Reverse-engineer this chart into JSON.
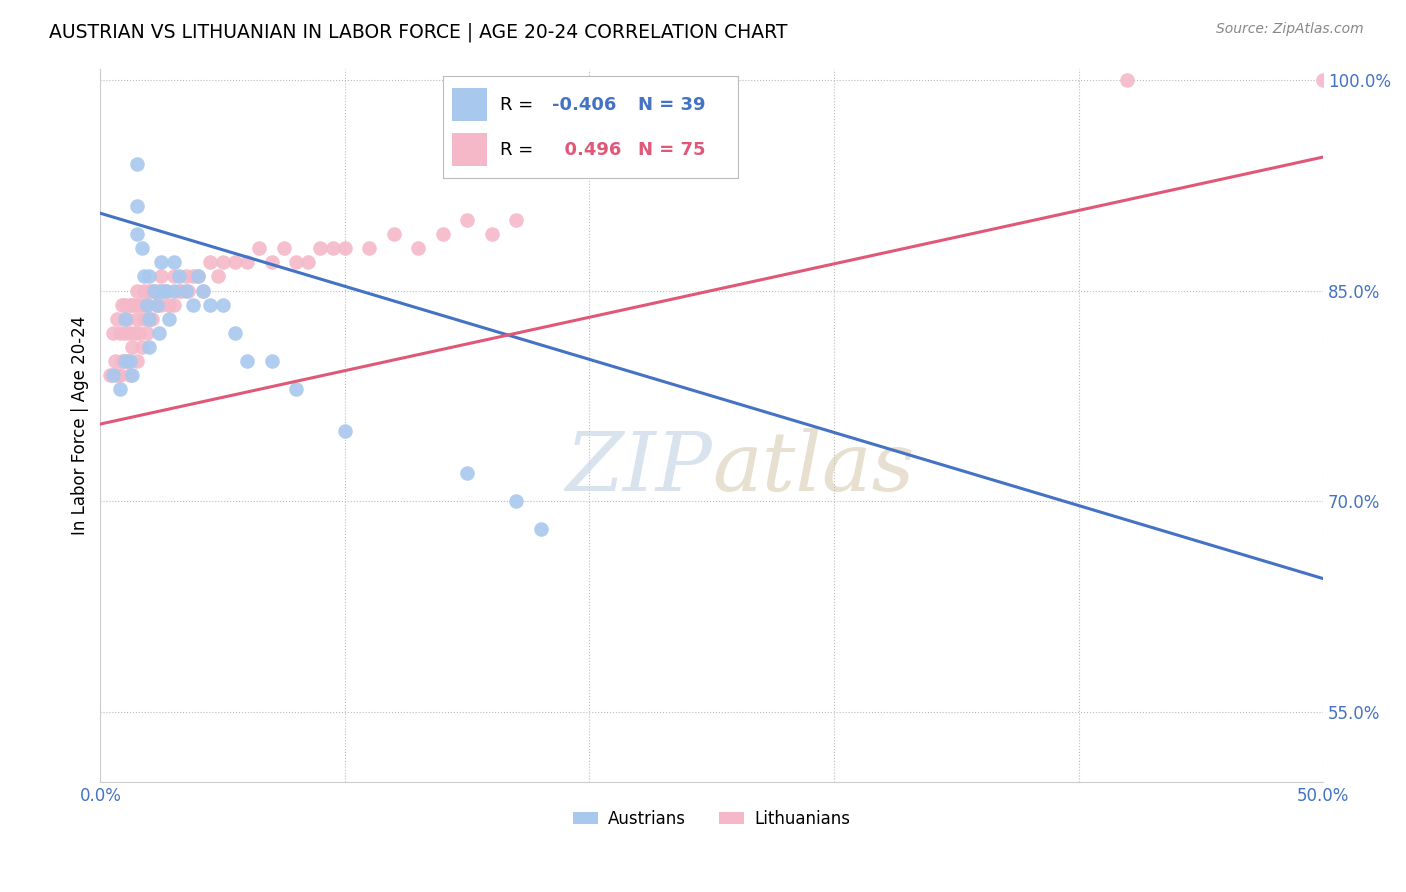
{
  "title": "AUSTRIAN VS LITHUANIAN IN LABOR FORCE | AGE 20-24 CORRELATION CHART",
  "source": "Source: ZipAtlas.com",
  "ylabel": "In Labor Force | Age 20-24",
  "xmin": 0.0,
  "xmax": 0.5,
  "ymin": 0.5,
  "ymax": 1.008,
  "xticks": [
    0.0,
    0.1,
    0.2,
    0.3,
    0.4,
    0.5
  ],
  "xticklabels": [
    "0.0%",
    "",
    "",
    "",
    "",
    "50.0%"
  ],
  "yticks": [
    0.55,
    0.7,
    0.85,
    1.0
  ],
  "yticklabels": [
    "55.0%",
    "70.0%",
    "85.0%",
    "100.0%"
  ],
  "legend_blue_r": "-0.406",
  "legend_blue_n": "39",
  "legend_pink_r": "0.496",
  "legend_pink_n": "75",
  "blue_color": "#A8C8EE",
  "pink_color": "#F5B8C8",
  "blue_line_color": "#4472C4",
  "pink_line_color": "#E05878",
  "watermark_color": "#C8D8E8",
  "blue_line_y0": 0.905,
  "blue_line_y1": 0.645,
  "pink_line_y0": 0.755,
  "pink_line_y1": 0.945,
  "austrians_x": [
    0.005,
    0.008,
    0.01,
    0.01,
    0.012,
    0.013,
    0.015,
    0.015,
    0.015,
    0.017,
    0.018,
    0.019,
    0.02,
    0.02,
    0.02,
    0.022,
    0.023,
    0.024,
    0.025,
    0.025,
    0.027,
    0.028,
    0.03,
    0.03,
    0.032,
    0.035,
    0.038,
    0.04,
    0.042,
    0.045,
    0.05,
    0.055,
    0.06,
    0.07,
    0.08,
    0.1,
    0.15,
    0.17,
    0.18
  ],
  "austrians_y": [
    0.79,
    0.78,
    0.83,
    0.8,
    0.8,
    0.79,
    0.94,
    0.91,
    0.89,
    0.88,
    0.86,
    0.84,
    0.86,
    0.83,
    0.81,
    0.85,
    0.84,
    0.82,
    0.87,
    0.85,
    0.85,
    0.83,
    0.87,
    0.85,
    0.86,
    0.85,
    0.84,
    0.86,
    0.85,
    0.84,
    0.84,
    0.82,
    0.8,
    0.8,
    0.78,
    0.75,
    0.72,
    0.7,
    0.68
  ],
  "lithuanians_x": [
    0.004,
    0.005,
    0.006,
    0.007,
    0.007,
    0.008,
    0.008,
    0.009,
    0.009,
    0.01,
    0.01,
    0.01,
    0.011,
    0.011,
    0.012,
    0.012,
    0.012,
    0.013,
    0.013,
    0.014,
    0.014,
    0.015,
    0.015,
    0.015,
    0.016,
    0.016,
    0.017,
    0.017,
    0.018,
    0.018,
    0.019,
    0.019,
    0.02,
    0.02,
    0.021,
    0.021,
    0.022,
    0.023,
    0.024,
    0.025,
    0.025,
    0.026,
    0.027,
    0.028,
    0.03,
    0.03,
    0.032,
    0.033,
    0.035,
    0.036,
    0.038,
    0.04,
    0.042,
    0.045,
    0.048,
    0.05,
    0.055,
    0.06,
    0.065,
    0.07,
    0.075,
    0.08,
    0.085,
    0.09,
    0.095,
    0.1,
    0.11,
    0.12,
    0.13,
    0.14,
    0.15,
    0.16,
    0.17,
    0.42,
    0.5
  ],
  "lithuanians_y": [
    0.79,
    0.82,
    0.8,
    0.83,
    0.79,
    0.82,
    0.79,
    0.84,
    0.8,
    0.84,
    0.82,
    0.8,
    0.83,
    0.8,
    0.84,
    0.82,
    0.79,
    0.84,
    0.81,
    0.84,
    0.82,
    0.85,
    0.83,
    0.8,
    0.84,
    0.82,
    0.84,
    0.81,
    0.85,
    0.83,
    0.84,
    0.82,
    0.85,
    0.83,
    0.85,
    0.83,
    0.85,
    0.84,
    0.85,
    0.86,
    0.84,
    0.85,
    0.85,
    0.84,
    0.86,
    0.84,
    0.85,
    0.85,
    0.86,
    0.85,
    0.86,
    0.86,
    0.85,
    0.87,
    0.86,
    0.87,
    0.87,
    0.87,
    0.88,
    0.87,
    0.88,
    0.87,
    0.87,
    0.88,
    0.88,
    0.88,
    0.88,
    0.89,
    0.88,
    0.89,
    0.9,
    0.89,
    0.9,
    1.0,
    1.0
  ]
}
